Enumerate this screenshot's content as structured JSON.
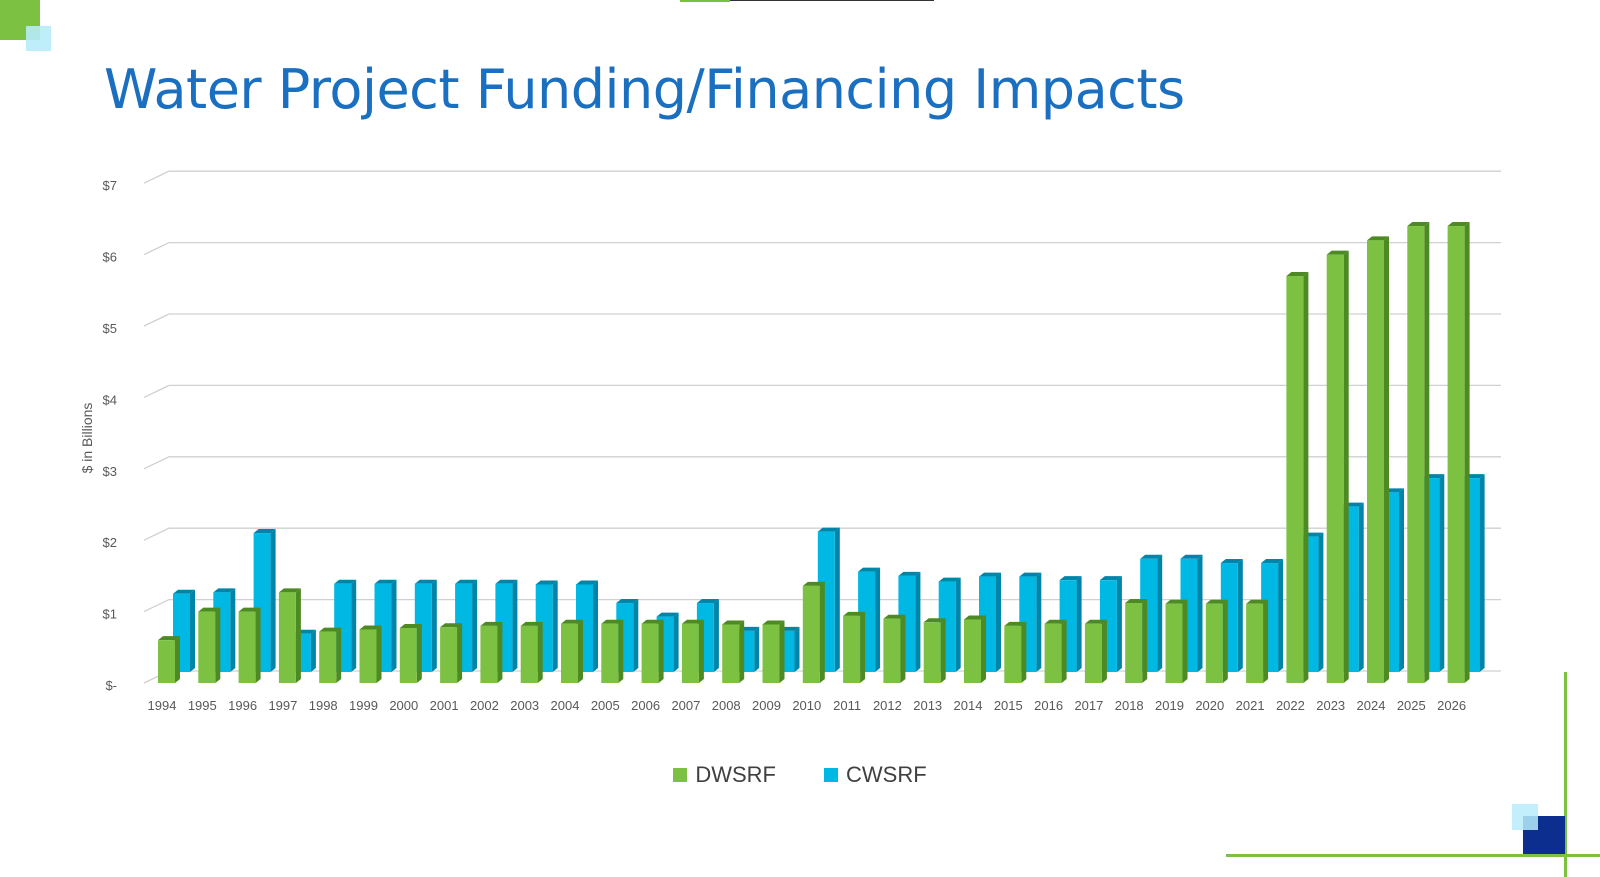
{
  "slide": {
    "title": "Water Project Funding/Financing Impacts"
  },
  "colors": {
    "title": "#1a6fc0",
    "dwsrf": "#7dc142",
    "dwsrf_side": "#4d8a24",
    "cwsrf": "#00b8e4",
    "cwsrf_side": "#0084a8",
    "deco_green": "#7dc142",
    "deco_light_blue": "#b7ecfa",
    "deco_navy": "#0c2f8f"
  },
  "chart_data": {
    "type": "bar",
    "ylabel": "$ in Billions",
    "ylim": [
      0,
      7
    ],
    "yticks": [
      0,
      1,
      2,
      3,
      4,
      5,
      6,
      7
    ],
    "ytick_labels": [
      "$-",
      "$1",
      "$2",
      "$3",
      "$4",
      "$5",
      "$6",
      "$7"
    ],
    "grid": true,
    "legend_position": "bottom",
    "categories": [
      "1994",
      "1995",
      "1996",
      "1997",
      "1998",
      "1999",
      "2000",
      "2001",
      "2002",
      "2003",
      "2004",
      "2005",
      "2006",
      "2007",
      "2008",
      "2009",
      "2010",
      "2011",
      "2012",
      "2013",
      "2014",
      "2015",
      "2016",
      "2017",
      "2018",
      "2019",
      "2020",
      "2021",
      "2022",
      "2023",
      "2024",
      "2025",
      "2026"
    ],
    "series": [
      {
        "name": "DWSRF",
        "values": [
          0.6,
          1.0,
          1.0,
          1.27,
          0.72,
          0.75,
          0.77,
          0.78,
          0.8,
          0.8,
          0.83,
          0.83,
          0.83,
          0.83,
          0.82,
          0.82,
          1.36,
          0.94,
          0.9,
          0.85,
          0.89,
          0.8,
          0.83,
          0.83,
          1.12,
          1.11,
          1.11,
          1.11,
          5.7,
          6.0,
          6.2,
          6.4,
          6.4
        ]
      },
      {
        "name": "CWSRF",
        "values": [
          1.25,
          1.27,
          2.1,
          0.69,
          1.39,
          1.39,
          1.39,
          1.39,
          1.39,
          1.38,
          1.38,
          1.12,
          0.93,
          1.12,
          0.73,
          0.73,
          2.12,
          1.56,
          1.5,
          1.42,
          1.49,
          1.49,
          1.44,
          1.44,
          1.74,
          1.74,
          1.68,
          1.68,
          2.05,
          2.47,
          2.67,
          2.87,
          2.87
        ]
      }
    ]
  }
}
